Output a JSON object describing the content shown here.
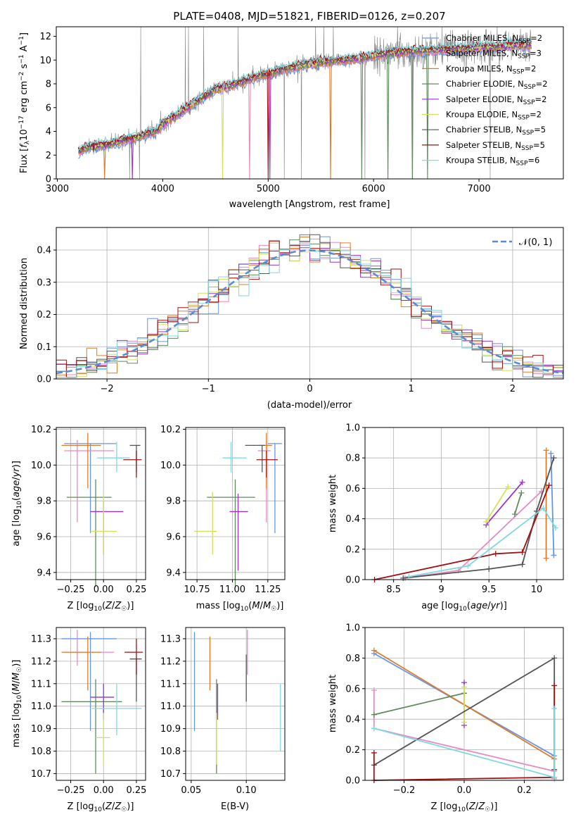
{
  "chart_data": [
    {
      "id": "spectrum",
      "type": "line",
      "title": "PLATE=0408, MJD=51821, FIBERID=0126, z=0.207",
      "xlabel": "wavelength [Angstrom, rest frame]",
      "ylabel": "Flux [fλ10⁻¹⁷ erg cm⁻² s⁻¹ A⁻¹]",
      "xlim": [
        2990,
        7800
      ],
      "ylim": [
        0,
        12.8
      ],
      "xticks": [
        3000,
        4000,
        5000,
        6000,
        7000
      ],
      "yticks": [
        0,
        2,
        4,
        6,
        8,
        10,
        12
      ],
      "grid": false,
      "legend_position": "top-right",
      "spectrum_knots": {
        "x": [
          3200,
          3300,
          3500,
          3650,
          3800,
          3900,
          3950,
          4000,
          4100,
          4300,
          4500,
          4700,
          4900,
          5100,
          5300,
          5500,
          5700,
          5900,
          6100,
          6300,
          6500,
          6700,
          6900,
          7100,
          7300,
          7500
        ],
        "y": [
          2.3,
          2.7,
          2.9,
          3.3,
          3.6,
          3.9,
          4.1,
          4.6,
          5.2,
          6.4,
          7.5,
          8.0,
          8.6,
          9.1,
          9.5,
          9.8,
          10.0,
          10.2,
          10.5,
          10.7,
          10.8,
          10.9,
          11.0,
          11.1,
          11.2,
          11.3
        ]
      },
      "series": [
        {
          "name": "Chabrier MILES, N_SSP=2",
          "color": "#6495ed"
        },
        {
          "name": "Salpeter MILES, N_SSP=3",
          "color": "#e78ac3"
        },
        {
          "name": "Kroupa MILES, N_SSP=2",
          "color": "#e07b24"
        },
        {
          "name": "Chabrier ELODIE, N_SSP=2",
          "color": "#5e8b5e"
        },
        {
          "name": "Salpeter ELODIE, N_SSP=2",
          "color": "#9932cc"
        },
        {
          "name": "Kroupa ELODIE, N_SSP=2",
          "color": "#d4e157"
        },
        {
          "name": "Chabrier STELIB, N_SSP=5",
          "color": "#555555"
        },
        {
          "name": "Salpeter STELIB, N_SSP=5",
          "color": "#a01010"
        },
        {
          "name": "Kroupa STELIB, N_SSP=6",
          "color": "#80d8e0"
        }
      ],
      "legend_labels": [
        [
          "Chabrier MILES, N",
          "SSP",
          "=2"
        ],
        [
          "Salpeter MILES, N",
          "SSP",
          "=3"
        ],
        [
          "Kroupa MILES, N",
          "SSP",
          "=2"
        ],
        [
          "Chabrier ELODIE, N",
          "SSP",
          "=2"
        ],
        [
          "Salpeter ELODIE, N",
          "SSP",
          "=2"
        ],
        [
          "Kroupa ELODIE, N",
          "SSP",
          "=2"
        ],
        [
          "Chabrier STELIB, N",
          "SSP",
          "=5"
        ],
        [
          "Salpeter STELIB, N",
          "SSP",
          "=5"
        ],
        [
          "Kroupa STELIB, N",
          "SSP",
          "=6"
        ]
      ]
    },
    {
      "id": "residuals",
      "type": "histogram",
      "xlabel": "(data-model)/error",
      "ylabel": "Normed distribution",
      "xlim": [
        -2.5,
        2.5
      ],
      "ylim": [
        0,
        0.47
      ],
      "xticks": [
        -2,
        -1,
        0,
        1,
        2
      ],
      "xticklabels": [
        "−2",
        "−1",
        "0",
        "1",
        "2"
      ],
      "yticks": [
        0.0,
        0.1,
        0.2,
        0.3,
        0.4
      ],
      "grid": true,
      "legend": "𝒩(0, 1)",
      "legend_position": "top-right",
      "bin_width": 0.1,
      "gaussian": {
        "mean": 0,
        "sigma": 1
      }
    },
    {
      "id": "age_vs_Z",
      "type": "errorbar",
      "xlabel": "Z [log10(Z/Z☉)]",
      "ylabel": "age [log10(age/yr)]",
      "xlim": [
        -0.36,
        0.32
      ],
      "ylim": [
        9.36,
        10.21
      ],
      "xticks": [
        -0.25,
        0.0,
        0.25
      ],
      "xticklabels": [
        "−0.25",
        "0.00",
        "0.25"
      ],
      "yticks": [
        9.4,
        9.6,
        9.8,
        10.0,
        10.2
      ],
      "grid": true,
      "points": [
        {
          "color": "#6495ed",
          "x": -0.1,
          "xerr": [
            0.2,
            0.2
          ],
          "y": 10.12,
          "yerr": [
            0.5,
            0.0
          ]
        },
        {
          "color": "#e78ac3",
          "x": -0.2,
          "xerr": [
            0.1,
            0.28
          ],
          "y": 10.08,
          "yerr": [
            0.4,
            0.06
          ]
        },
        {
          "color": "#e07b24",
          "x": -0.12,
          "xerr": [
            0.2,
            0.1
          ],
          "y": 10.11,
          "yerr": [
            0.24,
            0.07
          ]
        },
        {
          "color": "#5e8b5e",
          "x": -0.06,
          "xerr": [
            0.22,
            0.12
          ],
          "y": 9.82,
          "yerr": [
            0.5,
            0.1
          ]
        },
        {
          "color": "#9932cc",
          "x": 0.0,
          "xerr": [
            0.1,
            0.15
          ],
          "y": 9.74,
          "yerr": [
            0.24,
            0.06
          ]
        },
        {
          "color": "#d4e157",
          "x": 0.0,
          "xerr": [
            0.1,
            0.1
          ],
          "y": 9.63,
          "yerr": [
            0.13,
            0.22
          ]
        },
        {
          "color": "#555555",
          "x": 0.25,
          "xerr": [
            0.05,
            0.03
          ],
          "y": 10.11,
          "yerr": [
            0.15,
            0.0
          ]
        },
        {
          "color": "#a01010",
          "x": 0.25,
          "xerr": [
            0.1,
            0.04
          ],
          "y": 10.03,
          "yerr": [
            0.1,
            0.05
          ]
        },
        {
          "color": "#80d8e0",
          "x": 0.1,
          "xerr": [
            0.15,
            0.1
          ],
          "y": 10.04,
          "yerr": [
            0.08,
            0.09
          ]
        }
      ]
    },
    {
      "id": "age_vs_mass",
      "type": "errorbar",
      "xlabel": "mass [log10(M/M☉)]",
      "xlim": [
        10.67,
        11.37
      ],
      "ylim": [
        9.36,
        10.21
      ],
      "xticks": [
        10.75,
        11.0,
        11.25
      ],
      "xticklabels": [
        "10.75",
        "11.00",
        "11.25"
      ],
      "yticks": [
        9.4,
        9.6,
        9.8,
        10.0,
        10.2
      ],
      "grid": true,
      "points": [
        {
          "color": "#6495ed",
          "x": 11.3,
          "xerr": [
            0.05,
            0.05
          ],
          "y": 10.12,
          "yerr": [
            0.5,
            0.0
          ]
        },
        {
          "color": "#e78ac3",
          "x": 11.24,
          "xerr": [
            0.06,
            0.03
          ],
          "y": 10.08,
          "yerr": [
            0.4,
            0.06
          ]
        },
        {
          "color": "#e07b24",
          "x": 11.24,
          "xerr": [
            0.05,
            0.04
          ],
          "y": 10.11,
          "yerr": [
            0.24,
            0.07
          ]
        },
        {
          "color": "#5e8b5e",
          "x": 11.02,
          "xerr": [
            0.2,
            0.14
          ],
          "y": 9.82,
          "yerr": [
            0.5,
            0.1
          ]
        },
        {
          "color": "#9932cc",
          "x": 11.04,
          "xerr": [
            0.06,
            0.07
          ],
          "y": 9.74,
          "yerr": [
            0.33,
            0.1
          ]
        },
        {
          "color": "#d4e157",
          "x": 10.86,
          "xerr": [
            0.13,
            0.03
          ],
          "y": 9.63,
          "yerr": [
            0.13,
            0.22
          ]
        },
        {
          "color": "#555555",
          "x": 11.21,
          "xerr": [
            0.12,
            0.02
          ],
          "y": 10.11,
          "yerr": [
            0.15,
            0.0
          ]
        },
        {
          "color": "#a01010",
          "x": 11.24,
          "xerr": [
            0.07,
            0.08
          ],
          "y": 10.03,
          "yerr": [
            0.1,
            0.05
          ]
        },
        {
          "color": "#80d8e0",
          "x": 10.99,
          "xerr": [
            0.06,
            0.11
          ],
          "y": 10.04,
          "yerr": [
            0.08,
            0.09
          ]
        }
      ]
    },
    {
      "id": "weight_vs_age",
      "type": "line",
      "xlabel": "age [log10(age/yr)]",
      "ylabel": "mass weight",
      "xlim": [
        8.2,
        10.28
      ],
      "ylim": [
        0,
        1.0
      ],
      "xticks": [
        8.5,
        9.0,
        9.5,
        10.0
      ],
      "yticks": [
        0.0,
        0.2,
        0.4,
        0.6,
        0.8,
        1.0
      ],
      "grid": true,
      "series": [
        {
          "color": "#6495ed",
          "x": [
            10.15,
            10.18
          ],
          "y": [
            0.83,
            0.16
          ]
        },
        {
          "color": "#e78ac3",
          "x": [
            8.62,
            9.18,
            10.05
          ],
          "y": [
            0.01,
            0.06,
            0.58
          ]
        },
        {
          "color": "#e07b24",
          "x": [
            10.1,
            10.1
          ],
          "y": [
            0.85,
            0.14
          ]
        },
        {
          "color": "#5e8b5e",
          "x": [
            9.77,
            9.84
          ],
          "y": [
            0.43,
            0.57
          ]
        },
        {
          "color": "#9932cc",
          "x": [
            9.47,
            9.85
          ],
          "y": [
            0.36,
            0.64
          ]
        },
        {
          "color": "#d4e157",
          "x": [
            9.47,
            9.7
          ],
          "y": [
            0.38,
            0.61
          ]
        },
        {
          "color": "#555555",
          "x": [
            8.6,
            9.5,
            9.85,
            10.0,
            10.18
          ],
          "y": [
            0.01,
            0.07,
            0.1,
            0.45,
            0.8
          ]
        },
        {
          "color": "#a01010",
          "x": [
            8.3,
            9.57,
            9.85,
            10.13
          ],
          "y": [
            0.0,
            0.17,
            0.18,
            0.62
          ]
        },
        {
          "color": "#80d8e0",
          "x": [
            8.66,
            9.28,
            10.07,
            10.2
          ],
          "y": [
            0.02,
            0.09,
            0.47,
            0.34
          ]
        }
      ]
    },
    {
      "id": "mass_vs_Z",
      "type": "errorbar",
      "xlabel": "Z [log10(Z/Z☉)]",
      "ylabel": "mass [log10(M/M☉)]",
      "xlim": [
        -0.36,
        0.32
      ],
      "ylim": [
        10.67,
        11.35
      ],
      "xticks": [
        -0.25,
        0.0,
        0.25
      ],
      "xticklabels": [
        "−0.25",
        "0.00",
        "0.25"
      ],
      "yticks": [
        10.7,
        10.8,
        10.9,
        11.0,
        11.1,
        11.2,
        11.3
      ],
      "grid": true,
      "points": [
        {
          "color": "#6495ed",
          "x": -0.1,
          "xerr": [
            0.22,
            0.2
          ],
          "y": 11.3,
          "yerr": [
            0.41,
            0.03
          ]
        },
        {
          "color": "#e78ac3",
          "x": -0.2,
          "xerr": [
            0.1,
            0.28
          ],
          "y": 11.24,
          "yerr": [
            0.06,
            0.1
          ]
        },
        {
          "color": "#e07b24",
          "x": -0.12,
          "xerr": [
            0.2,
            0.1
          ],
          "y": 11.24,
          "yerr": [
            0.17,
            0.07
          ]
        },
        {
          "color": "#5e8b5e",
          "x": -0.06,
          "xerr": [
            0.26,
            0.2
          ],
          "y": 11.02,
          "yerr": [
            0.32,
            0.1
          ]
        },
        {
          "color": "#9932cc",
          "x": 0.0,
          "xerr": [
            0.1,
            0.08
          ],
          "y": 11.04,
          "yerr": [
            0.1,
            0.06
          ]
        },
        {
          "color": "#d4e157",
          "x": 0.0,
          "xerr": [
            0.06,
            0.05
          ],
          "y": 10.86,
          "yerr": [
            0.12,
            0.11
          ]
        },
        {
          "color": "#555555",
          "x": 0.25,
          "xerr": [
            0.05,
            0.04
          ],
          "y": 11.21,
          "yerr": [
            0.19,
            0.0
          ]
        },
        {
          "color": "#a01010",
          "x": 0.25,
          "xerr": [
            0.09,
            0.05
          ],
          "y": 11.24,
          "yerr": [
            0.1,
            0.06
          ]
        },
        {
          "color": "#80d8e0",
          "x": 0.1,
          "xerr": [
            0.19,
            0.19
          ],
          "y": 10.99,
          "yerr": [
            0.12,
            0.11
          ]
        }
      ]
    },
    {
      "id": "mass_vs_ebv",
      "type": "errorbar",
      "xlabel": "E(B-V)",
      "xlim": [
        0.045,
        0.135
      ],
      "ylim": [
        10.67,
        11.35
      ],
      "xticks": [
        0.05,
        0.1
      ],
      "xticklabels": [
        "0.05",
        "0.10"
      ],
      "yticks": [
        10.7,
        10.8,
        10.9,
        11.0,
        11.1,
        11.2,
        11.3
      ],
      "grid": true,
      "points": [
        {
          "color": "#6495ed",
          "x": 0.053,
          "y": 11.3,
          "yerr": [
            0.41,
            0.03
          ]
        },
        {
          "color": "#e07b24",
          "x": 0.067,
          "y": 11.24,
          "yerr": [
            0.17,
            0.07
          ]
        },
        {
          "color": "#5e8b5e",
          "x": 0.073,
          "y": 11.02,
          "yerr": [
            0.32,
            0.1
          ]
        },
        {
          "color": "#9932cc",
          "x": 0.074,
          "y": 11.04,
          "yerr": [
            0.1,
            0.06
          ]
        },
        {
          "color": "#d4e157",
          "x": 0.073,
          "y": 10.86,
          "yerr": [
            0.12,
            0.11
          ]
        },
        {
          "color": "#555555",
          "x": 0.1,
          "y": 11.21,
          "yerr": [
            0.19,
            0.02
          ]
        },
        {
          "color": "#e78ac3",
          "x": 0.101,
          "y": 11.24,
          "yerr": [
            0.1,
            0.1
          ]
        },
        {
          "color": "#80d8e0",
          "x": 0.131,
          "y": 10.99,
          "yerr": [
            0.19,
            0.11
          ]
        }
      ]
    },
    {
      "id": "weight_vs_Z",
      "type": "line",
      "xlabel": "Z [log10(Z/Z☉)]",
      "ylabel": "mass weight",
      "xlim": [
        -0.33,
        0.33
      ],
      "ylim": [
        0,
        1.0
      ],
      "xticks": [
        -0.2,
        0.0,
        0.2
      ],
      "xticklabels": [
        "−0.2",
        "0.0",
        "0.2"
      ],
      "yticks": [
        0.0,
        0.2,
        0.4,
        0.6,
        0.8,
        1.0
      ],
      "grid": true,
      "series": [
        {
          "color": "#6495ed",
          "x": [
            -0.3,
            0.3
          ],
          "y": [
            0.83,
            0.16
          ]
        },
        {
          "color": "#e07b24",
          "x": [
            -0.3,
            0.3
          ],
          "y": [
            0.85,
            0.14
          ]
        },
        {
          "color": "#e78ac3",
          "x": [
            -0.3,
            -0.3,
            0.3,
            0.3
          ],
          "y": [
            0.59,
            0.34,
            0.06,
            0.01
          ]
        },
        {
          "color": "#5e8b5e",
          "x": [
            -0.3,
            0.0
          ],
          "y": [
            0.43,
            0.57
          ]
        },
        {
          "color": "#9932cc",
          "x": [
            0.0,
            0.0
          ],
          "y": [
            0.64,
            0.36
          ]
        },
        {
          "color": "#d4e157",
          "x": [
            0.0,
            0.0
          ],
          "y": [
            0.61,
            0.38
          ]
        },
        {
          "color": "#555555",
          "x": [
            -0.3,
            0.3,
            0.3
          ],
          "y": [
            0.1,
            0.8,
            0.07
          ]
        },
        {
          "color": "#a01010",
          "x": [
            -0.3,
            -0.3,
            0.3,
            0.3
          ],
          "y": [
            0.18,
            0.0,
            0.02,
            0.62
          ]
        },
        {
          "color": "#80d8e0",
          "x": [
            -0.3,
            0.3,
            0.3
          ],
          "y": [
            0.34,
            0.02,
            0.47
          ]
        }
      ]
    }
  ]
}
